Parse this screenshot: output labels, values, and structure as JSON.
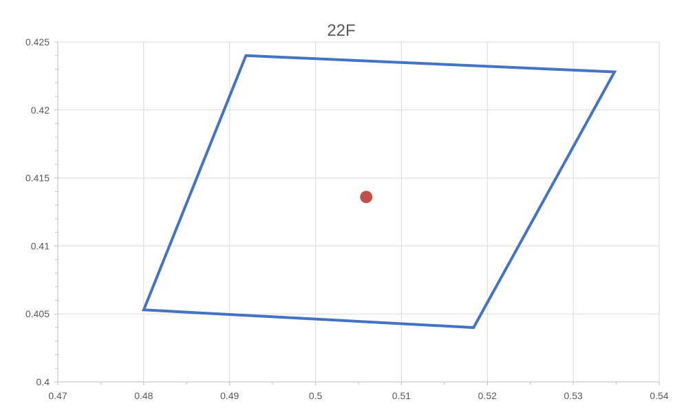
{
  "chart_data": {
    "type": "scatter",
    "title": "22F",
    "xlabel": "",
    "ylabel": "",
    "xlim": [
      0.47,
      0.54
    ],
    "ylim": [
      0.4,
      0.425
    ],
    "x_ticks": [
      0.47,
      0.48,
      0.49,
      0.5,
      0.51,
      0.52,
      0.53,
      0.54
    ],
    "x_tick_labels": [
      "0.47",
      "0.48",
      "0.49",
      "0.5",
      "0.51",
      "0.52",
      "0.53",
      "0.54"
    ],
    "y_ticks": [
      0.4,
      0.405,
      0.41,
      0.415,
      0.42,
      0.425
    ],
    "y_tick_labels": [
      "0.4",
      "0.405",
      "0.41",
      "0.415",
      "0.42",
      "0.425"
    ],
    "grid": true,
    "legend": "none",
    "series": [
      {
        "kind": "line",
        "color": "#4472C4",
        "closed": true,
        "points": [
          {
            "x": 0.4919,
            "y": 0.424
          },
          {
            "x": 0.5348,
            "y": 0.4228
          },
          {
            "x": 0.5184,
            "y": 0.404
          },
          {
            "x": 0.48,
            "y": 0.4053
          }
        ]
      },
      {
        "kind": "marker",
        "color": "#C0504D",
        "points": [
          {
            "x": 0.5059,
            "y": 0.4136
          }
        ]
      }
    ]
  }
}
